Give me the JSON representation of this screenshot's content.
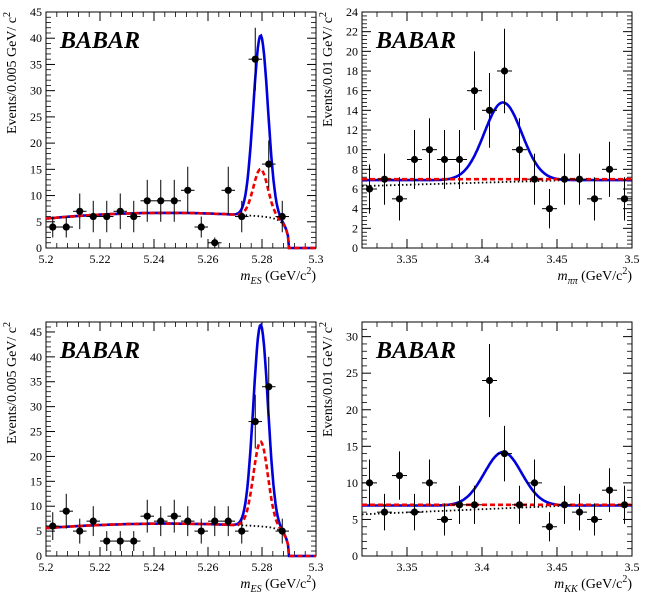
{
  "chart_data": [
    {
      "type": "scatter",
      "logo": "BABAR",
      "xlabel": "m_ES (GeV/c^2)",
      "xlabel_parts": {
        "var": "m",
        "sub": "ES",
        "unit": "(GeV/c",
        "sup": "2",
        "close": ")"
      },
      "ylabel": "Events/0.005 GeV/ c^2",
      "ylabel_parts": {
        "base": "Events/0.005 GeV/ c",
        "sup": "2"
      },
      "xlim": [
        5.2,
        5.3
      ],
      "ylim": [
        0,
        45
      ],
      "xticks": [
        "5.2",
        "5.22",
        "5.24",
        "5.26",
        "5.28",
        "5.3"
      ],
      "yticks": [
        "0",
        "5",
        "10",
        "15",
        "20",
        "25",
        "30",
        "35",
        "40",
        "45"
      ],
      "points": {
        "x": [
          5.2025,
          5.2075,
          5.2125,
          5.2175,
          5.2225,
          5.2275,
          5.2325,
          5.2375,
          5.2425,
          5.2475,
          5.2525,
          5.2575,
          5.2625,
          5.2675,
          5.2725,
          5.2775,
          5.2825,
          5.2875
        ],
        "y": [
          4,
          4,
          7,
          6,
          6,
          7,
          6,
          9,
          9,
          9,
          11,
          4,
          1,
          11,
          6,
          36,
          16,
          6
        ],
        "yerr": [
          2,
          2,
          3.4,
          3,
          3,
          3.4,
          3,
          4,
          4,
          4,
          4.5,
          2,
          1,
          4.5,
          3,
          6,
          4.5,
          3
        ]
      },
      "curves": {
        "total": {
          "style": "solid",
          "color": "#0000dd",
          "peak": 34.5
        },
        "peaking": {
          "style": "dashed",
          "color": "#ee0000",
          "peak": 9.0
        },
        "background": {
          "style": "dotted",
          "color": "#000000"
        },
        "background_level": 5.6,
        "background_mid": 6.7,
        "endpoint": 5.29,
        "mean": 5.2795,
        "sigma": 0.0027
      }
    },
    {
      "type": "scatter",
      "logo": "BABAR",
      "xlabel": "m_ππ (GeV/c^2)",
      "xlabel_parts": {
        "var": "m",
        "sub": "ππ",
        "unit": "(GeV/c",
        "sup": "2",
        "close": ")"
      },
      "ylabel": "Events/0.01 GeV/ c^2",
      "ylabel_parts": {
        "base": "Events/0.01 GeV/ c",
        "sup": "2"
      },
      "xlim": [
        3.32,
        3.5
      ],
      "ylim": [
        0,
        24
      ],
      "xticks": [
        "3.35",
        "3.4",
        "3.45",
        "3.5"
      ],
      "yticks": [
        "0",
        "2",
        "4",
        "6",
        "8",
        "10",
        "12",
        "14",
        "16",
        "18",
        "20",
        "22",
        "24"
      ],
      "points": {
        "x": [
          3.325,
          3.335,
          3.345,
          3.355,
          3.365,
          3.375,
          3.385,
          3.395,
          3.405,
          3.415,
          3.425,
          3.435,
          3.445,
          3.455,
          3.465,
          3.475,
          3.485,
          3.495
        ],
        "y": [
          6,
          7,
          5,
          9,
          10,
          9,
          9,
          16,
          14,
          18,
          10,
          7,
          4,
          7,
          7,
          5,
          8,
          5
        ],
        "yerr": [
          2.5,
          2.6,
          2.2,
          3,
          3.2,
          3,
          3,
          4,
          3.8,
          4.3,
          3.2,
          2.6,
          2,
          2.6,
          2.6,
          2.2,
          2.8,
          2.2
        ]
      },
      "curves": {
        "total": {
          "style": "solid",
          "color": "#0000dd",
          "peak": 7.9
        },
        "peaking": {
          "style": "dashed",
          "color": "#ee0000"
        },
        "background": {
          "style": "dotted",
          "color": "#000000"
        },
        "background_level": 6.9,
        "peaking_level": 7.0,
        "background_low": 6.3,
        "mean": 3.414,
        "sigma": 0.0125
      }
    },
    {
      "type": "scatter",
      "logo": "BABAR",
      "xlabel": "m_ES (GeV/c^2)",
      "xlabel_parts": {
        "var": "m",
        "sub": "ES",
        "unit": "(GeV/c",
        "sup": "2",
        "close": ")"
      },
      "ylabel": "Events/0.005 GeV/ c^2",
      "ylabel_parts": {
        "base": "Events/0.005 GeV/ c",
        "sup": "2"
      },
      "xlim": [
        5.2,
        5.3
      ],
      "ylim": [
        0,
        47
      ],
      "xticks": [
        "5.2",
        "5.22",
        "5.24",
        "5.26",
        "5.28",
        "5.3"
      ],
      "yticks": [
        "0",
        "5",
        "10",
        "15",
        "20",
        "25",
        "30",
        "35",
        "40",
        "45"
      ],
      "points": {
        "x": [
          5.2025,
          5.2075,
          5.2125,
          5.2175,
          5.2225,
          5.2275,
          5.2325,
          5.2375,
          5.2425,
          5.2475,
          5.2525,
          5.2575,
          5.2625,
          5.2675,
          5.2725,
          5.2775,
          5.2825,
          5.2875
        ],
        "y": [
          6,
          9,
          5,
          7,
          3,
          3,
          3,
          8,
          7,
          8,
          7,
          5,
          7,
          7,
          5,
          27,
          34,
          5
        ],
        "yerr": [
          2.8,
          3.5,
          2.5,
          3,
          2,
          2,
          2,
          3.3,
          3,
          3.3,
          3,
          2.5,
          3,
          3,
          2.5,
          5.4,
          6,
          2.5
        ]
      },
      "curves": {
        "total": {
          "style": "solid",
          "color": "#0000dd",
          "peak": 40.5
        },
        "peaking": {
          "style": "dashed",
          "color": "#ee0000",
          "peak": 17.0
        },
        "background": {
          "style": "dotted",
          "color": "#000000"
        },
        "background_level": 5.6,
        "background_mid": 6.5,
        "endpoint": 5.29,
        "mean": 5.2795,
        "sigma": 0.0027
      }
    },
    {
      "type": "scatter",
      "logo": "BABAR",
      "xlabel": "m_KK (GeV/c^2)",
      "xlabel_parts": {
        "var": "m",
        "sub": "KK",
        "unit": "(GeV/c",
        "sup": "2",
        "close": ")"
      },
      "ylabel": "Events/0.01 GeV/ c^2",
      "ylabel_parts": {
        "base": "Events/0.01 GeV/ c",
        "sup": "2"
      },
      "xlim": [
        3.32,
        3.5
      ],
      "ylim": [
        0,
        32
      ],
      "xticks": [
        "3.35",
        "3.4",
        "3.45",
        "3.5"
      ],
      "yticks": [
        "0",
        "5",
        "10",
        "15",
        "20",
        "25",
        "30"
      ],
      "points": {
        "x": [
          3.325,
          3.335,
          3.345,
          3.355,
          3.365,
          3.375,
          3.385,
          3.395,
          3.405,
          3.415,
          3.425,
          3.435,
          3.445,
          3.455,
          3.465,
          3.475,
          3.485,
          3.495
        ],
        "y": [
          10,
          6,
          11,
          6,
          10,
          5,
          7,
          7,
          24,
          14,
          7,
          10,
          4,
          7,
          6,
          5,
          9,
          7
        ],
        "yerr": [
          3.2,
          2.5,
          3.3,
          2.5,
          3.2,
          2.2,
          2.6,
          2.6,
          5,
          3.8,
          2.6,
          3.2,
          2,
          2.6,
          2.5,
          2.2,
          3,
          2.6
        ]
      },
      "curves": {
        "total": {
          "style": "solid",
          "color": "#0000dd",
          "peak": 7.3
        },
        "peaking": {
          "style": "dashed",
          "color": "#ee0000"
        },
        "background": {
          "style": "dotted",
          "color": "#000000"
        },
        "background_level": 6.9,
        "peaking_level": 7.0,
        "background_low": 5.7,
        "mean": 3.414,
        "sigma": 0.0125
      }
    }
  ]
}
